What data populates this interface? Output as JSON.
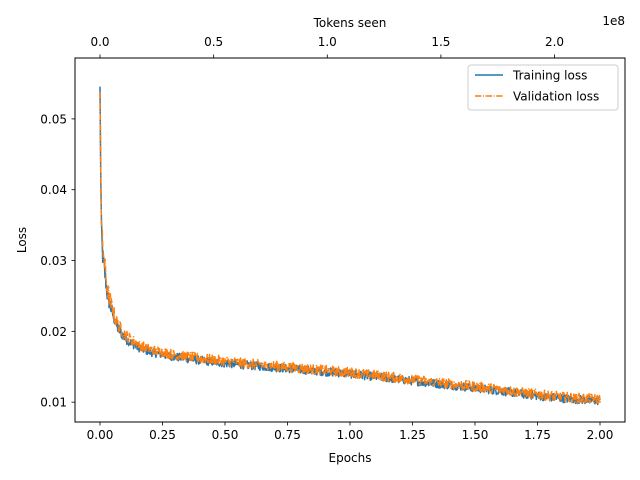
{
  "chart_data": {
    "type": "line",
    "xlabel": "Epochs",
    "ylabel": "Loss",
    "top_xlabel": "Tokens seen",
    "top_axis_offset_label": "1e8",
    "xlim": [
      -0.1,
      2.1
    ],
    "ylim": [
      0.0072,
      0.0586
    ],
    "top_xlim": [
      -11000000,
      231000000
    ],
    "x_ticks": [
      0.0,
      0.25,
      0.5,
      0.75,
      1.0,
      1.25,
      1.5,
      1.75,
      2.0
    ],
    "x_tick_labels": [
      "0.00",
      "0.25",
      "0.50",
      "0.75",
      "1.00",
      "1.25",
      "1.50",
      "1.75",
      "2.00"
    ],
    "y_ticks": [
      0.01,
      0.02,
      0.03,
      0.04,
      0.05
    ],
    "y_tick_labels": [
      "0.01",
      "0.02",
      "0.03",
      "0.04",
      "0.05"
    ],
    "top_x_ticks": [
      0,
      50000000,
      100000000,
      150000000,
      200000000
    ],
    "top_x_tick_labels": [
      "0.0",
      "0.5",
      "1.0",
      "1.5",
      "2.0"
    ],
    "legend_position": "top-right",
    "grid": false,
    "series": [
      {
        "name": "Training loss",
        "color": "#1f77b4",
        "line_style": "solid",
        "noise_amplitude": 0.0006,
        "x": [
          0.0,
          0.005,
          0.01,
          0.02,
          0.03,
          0.05,
          0.07,
          0.1,
          0.15,
          0.2,
          0.3,
          0.4,
          0.5,
          0.6,
          0.7,
          0.8,
          0.9,
          1.0,
          1.1,
          1.2,
          1.3,
          1.4,
          1.5,
          1.6,
          1.7,
          1.8,
          1.9,
          2.0
        ],
        "y": [
          0.054,
          0.035,
          0.031,
          0.028,
          0.025,
          0.0225,
          0.0205,
          0.019,
          0.0178,
          0.0171,
          0.0164,
          0.0159,
          0.0155,
          0.0152,
          0.0149,
          0.0146,
          0.0143,
          0.014,
          0.0136,
          0.0132,
          0.0128,
          0.0124,
          0.012,
          0.0116,
          0.0111,
          0.0107,
          0.0104,
          0.0102
        ]
      },
      {
        "name": "Validation loss",
        "color": "#ff7f0e",
        "line_style": "dashdot",
        "noise_amplitude": 0.0007,
        "x": [
          0.0,
          0.005,
          0.01,
          0.02,
          0.03,
          0.05,
          0.07,
          0.1,
          0.15,
          0.2,
          0.3,
          0.4,
          0.5,
          0.6,
          0.7,
          0.8,
          0.9,
          1.0,
          1.1,
          1.2,
          1.3,
          1.4,
          1.5,
          1.6,
          1.7,
          1.8,
          1.9,
          2.0
        ],
        "y": [
          0.0555,
          0.036,
          0.032,
          0.0288,
          0.0258,
          0.023,
          0.021,
          0.0195,
          0.0182,
          0.0174,
          0.0167,
          0.0162,
          0.0158,
          0.0154,
          0.0151,
          0.0148,
          0.0145,
          0.0142,
          0.0138,
          0.0134,
          0.013,
          0.0126,
          0.0122,
          0.0118,
          0.0113,
          0.0109,
          0.0106,
          0.0104
        ]
      }
    ]
  }
}
